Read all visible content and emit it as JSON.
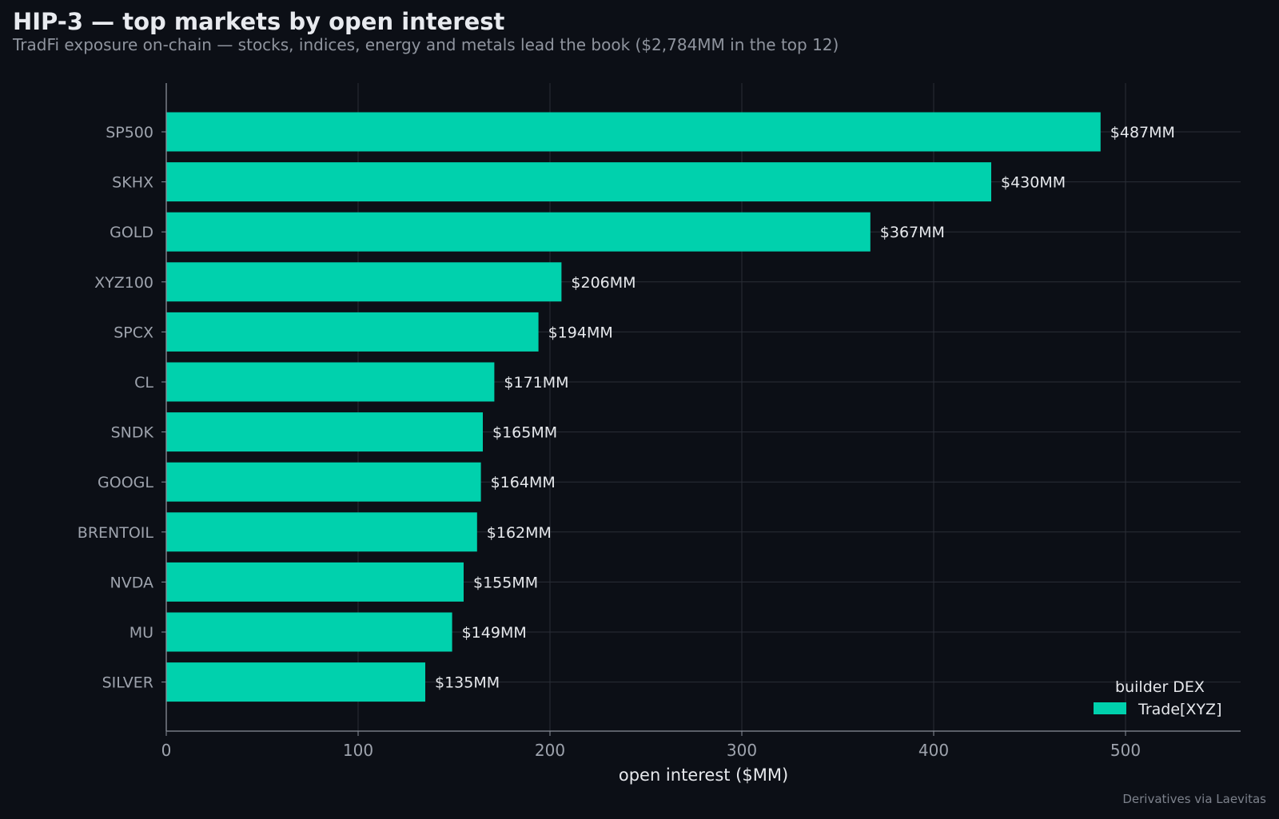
{
  "header": {
    "title": "HIP-3 — top markets by open interest",
    "subtitle": "TradFi exposure on-chain — stocks, indices, energy and metals lead the book ($2,784MM in the top 12)"
  },
  "footer": {
    "source": "Derivatives via Laevitas"
  },
  "chart_data": {
    "type": "bar",
    "orientation": "horizontal",
    "categories": [
      "SP500",
      "SKHX",
      "GOLD",
      "XYZ100",
      "SPCX",
      "CL",
      "SNDK",
      "GOOGL",
      "BRENTOIL",
      "NVDA",
      "MU",
      "SILVER"
    ],
    "series": [
      {
        "name": "Trade[XYZ]",
        "values": [
          487,
          430,
          367,
          206,
          194,
          171,
          165,
          164,
          162,
          155,
          149,
          135
        ],
        "labels": [
          "$487MM",
          "$430MM",
          "$367MM",
          "$206MM",
          "$194MM",
          "$171MM",
          "$165MM",
          "$164MM",
          "$162MM",
          "$155MM",
          "$149MM",
          "$135MM"
        ],
        "color": "#00d1ad"
      }
    ],
    "xlabel": "open interest ($MM)",
    "xlim": [
      0,
      560
    ],
    "xticks": [
      0,
      100,
      200,
      300,
      400,
      500
    ],
    "grid": true,
    "legend": {
      "title": "builder DEX",
      "position": "bottom-right"
    }
  },
  "colors": {
    "background": "#0c0f16",
    "bar": "#00d1ad",
    "grid": "#2a2e37",
    "axis": "#8a8f99",
    "tick_text": "#9ea3ad",
    "value_text": "#e6e8ec"
  }
}
